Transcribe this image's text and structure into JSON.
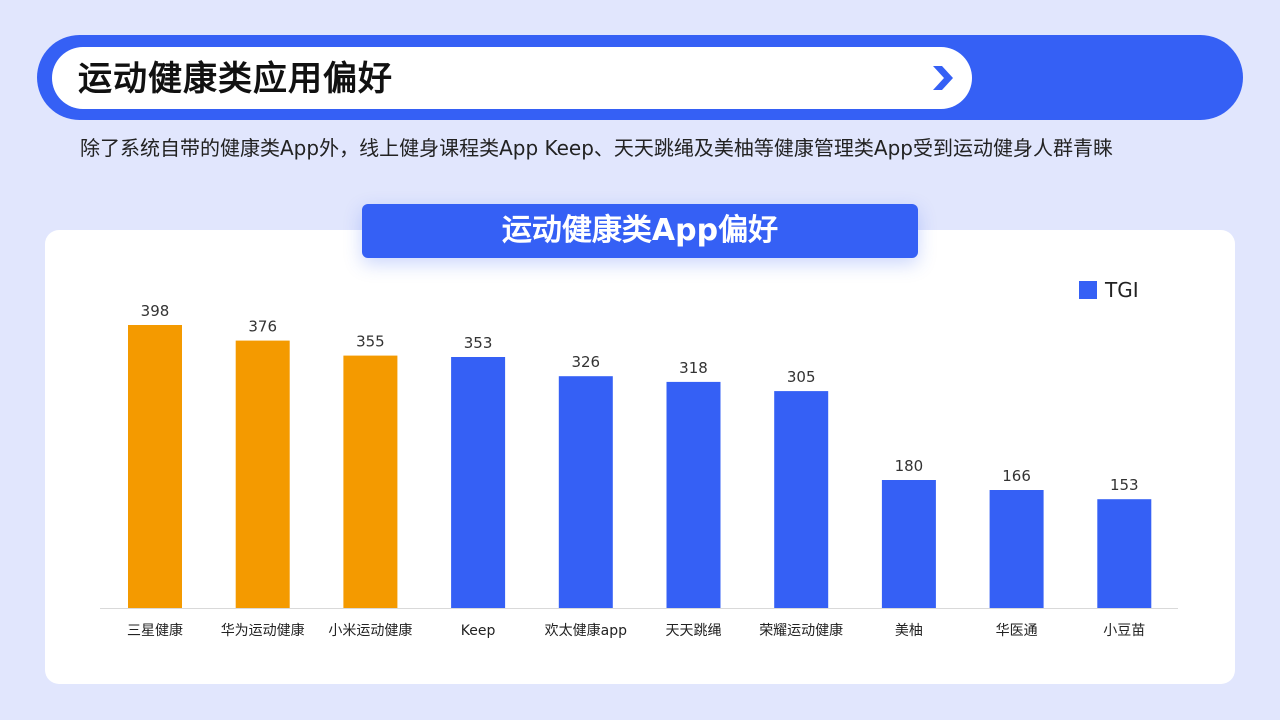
{
  "header": {
    "title": "运动健康类应用偏好",
    "subtitle": "除了系统自带的健康类App外，线上健身课程类App Keep、天天跳绳及美柚等健康管理类App受到运动健身人群青睐",
    "icon": "chevron-right-icon"
  },
  "chart_badge": "运动健康类App偏好",
  "colors": {
    "background": "#E1E6FD",
    "accent_blue": "#3560F5",
    "highlight_orange": "#F49A00"
  },
  "chart_data": {
    "type": "bar",
    "title": "运动健康类App偏好",
    "categories": [
      "三星健康",
      "华为运动健康",
      "小米运动健康",
      "Keep",
      "欢太健康app",
      "天天跳绳",
      "荣耀运动健康",
      "美柚",
      "华医通",
      "小豆苗"
    ],
    "series": [
      {
        "name": "TGI",
        "values": [
          398,
          376,
          355,
          353,
          326,
          318,
          305,
          180,
          166,
          153
        ]
      }
    ],
    "highlighted_categories": [
      "三星健康",
      "华为运动健康",
      "小米运动健康"
    ],
    "ylim": [
      0,
      398
    ],
    "grid": false,
    "legend": "top-right",
    "xlabel": "",
    "ylabel": ""
  }
}
